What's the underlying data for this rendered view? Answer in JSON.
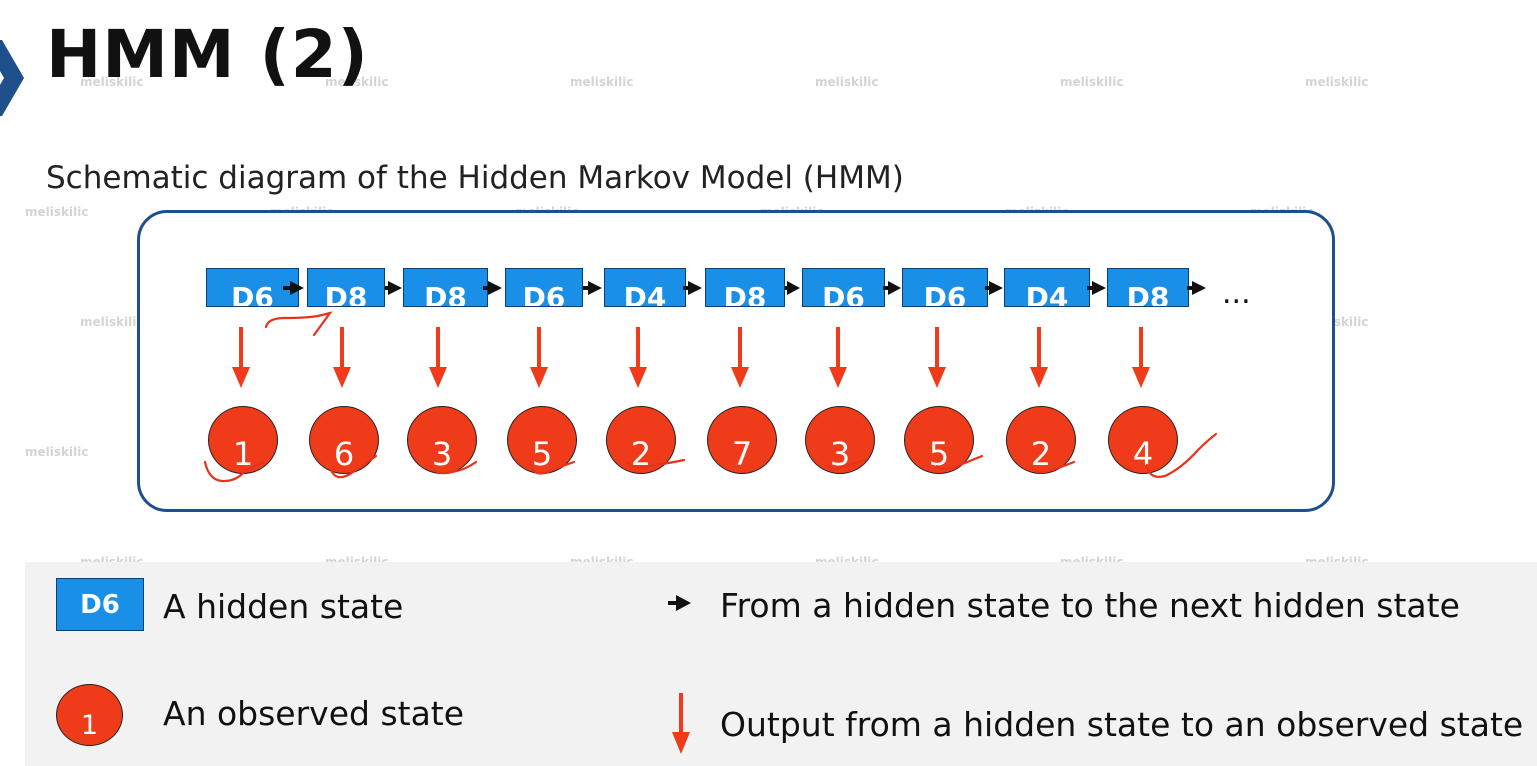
{
  "title": "HMM (2)",
  "subtitle": "Schematic diagram of the Hidden Markov Model (HMM)",
  "hidden_states": [
    "D6",
    "D8",
    "D8",
    "D6",
    "D4",
    "D8",
    "D6",
    "D6",
    "D4",
    "D8"
  ],
  "observed_states": [
    "1",
    "6",
    "3",
    "5",
    "2",
    "7",
    "3",
    "5",
    "2",
    "4"
  ],
  "continuation": "...",
  "legend": {
    "hidden_state_example": "D6",
    "hidden_state_label": "A hidden state",
    "observed_state_example": "1",
    "observed_state_label": "An observed state",
    "transition_label": "From a hidden state to the next hidden state",
    "emission_label": "Output from a hidden state to an observed state"
  },
  "watermark": "meliskilic",
  "colors": {
    "hidden_state_fill": "#1a8fe8",
    "observed_state_fill": "#ef3b1a",
    "frame_border": "#1f4f8a",
    "emission_arrow": "#ef3b1a",
    "annotation_ink": "#e8321a"
  }
}
